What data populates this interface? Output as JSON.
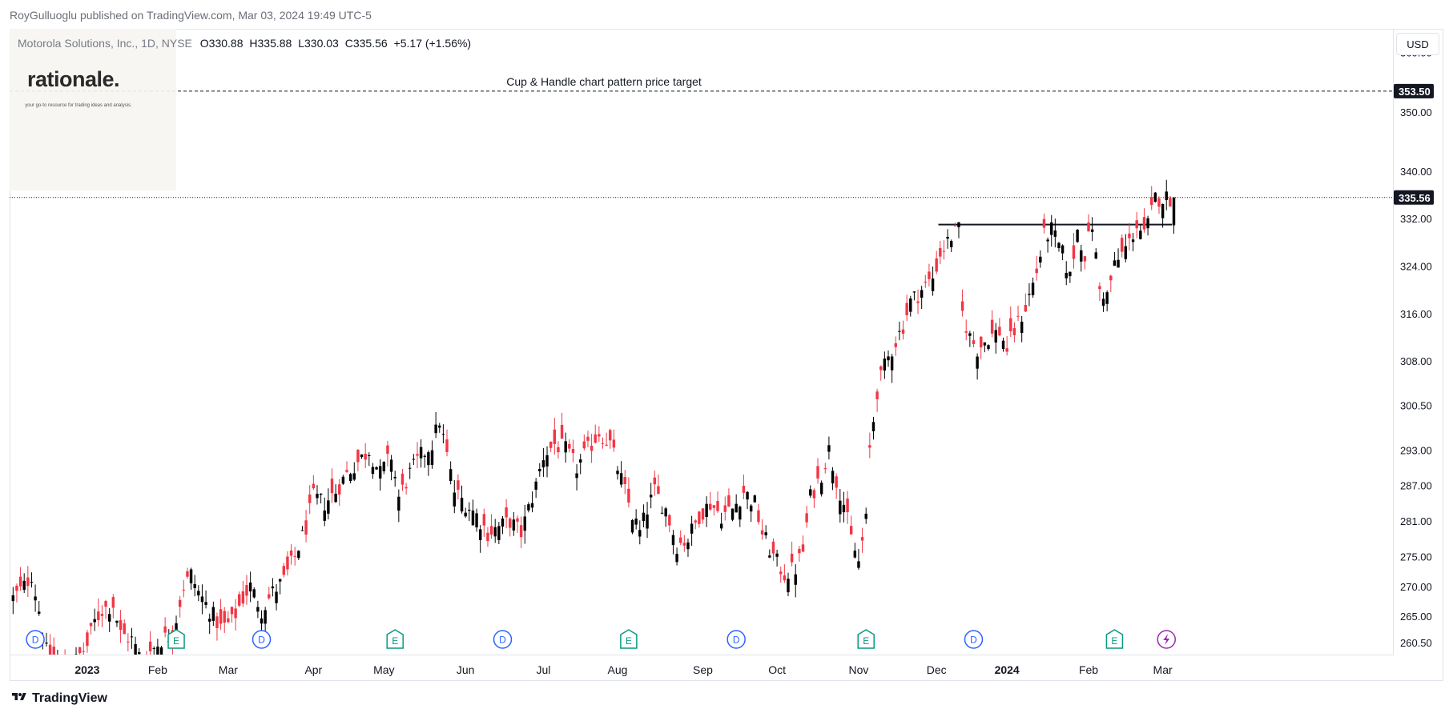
{
  "header": {
    "published": "RoyGulluoglu published on TradingView.com, Mar 03, 2024 19:49 UTC-5"
  },
  "legend": {
    "symbol": "Motorola Solutions, Inc., 1D, NYSE",
    "open_label": "O",
    "open": "330.88",
    "high_label": "H",
    "high": "335.88",
    "low_label": "L",
    "low": "330.03",
    "close_label": "C",
    "close": "335.56",
    "change": "+5.17 (+1.56%)"
  },
  "watermark": {
    "brand": "rationale.",
    "tagline": "your go-to resource for trading ideas and analysis."
  },
  "currency_button": "USD",
  "footer": {
    "brand": "TradingView"
  },
  "colors": {
    "up": "#000000",
    "down": "#f23645",
    "event_dividend": "#2962ff",
    "event_earnings": "#089981",
    "event_split": "#9c27b0",
    "last_price_label_bg": "#131722"
  },
  "chart_data": {
    "type": "candlestick",
    "ylim": [
      258.5,
      364
    ],
    "y_ticks": [
      "360.00",
      "350.00",
      "340.00",
      "332.00",
      "324.00",
      "316.00",
      "308.00",
      "300.50",
      "293.00",
      "287.00",
      "281.00",
      "275.00",
      "270.00",
      "265.00",
      "260.50"
    ],
    "x_ticks": [
      {
        "label": "2023",
        "bold": true,
        "index": 20
      },
      {
        "label": "Feb",
        "index": 39
      },
      {
        "label": "Mar",
        "index": 58
      },
      {
        "label": "Apr",
        "index": 81
      },
      {
        "label": "May",
        "index": 100
      },
      {
        "label": "Jun",
        "index": 122
      },
      {
        "label": "Jul",
        "index": 143
      },
      {
        "label": "Aug",
        "index": 163
      },
      {
        "label": "Sep",
        "index": 186
      },
      {
        "label": "Oct",
        "index": 206
      },
      {
        "label": "Nov",
        "index": 228
      },
      {
        "label": "Dec",
        "index": 249
      },
      {
        "label": "2024",
        "bold": true,
        "index": 268
      },
      {
        "label": "Feb",
        "index": 290
      },
      {
        "label": "Mar",
        "index": 310
      }
    ],
    "annotations": {
      "target_line": {
        "price": 353.5,
        "label": "353.50",
        "text": "Cup & Handle chart pattern price target"
      },
      "last_price": {
        "price": 335.56,
        "label": "335.56"
      },
      "neckline": {
        "price": 331,
        "from_index": 250,
        "to_index": 313
      }
    },
    "events": [
      {
        "type": "D",
        "index": 6
      },
      {
        "type": "E",
        "index": 44
      },
      {
        "type": "D",
        "index": 67
      },
      {
        "type": "E",
        "index": 103
      },
      {
        "type": "D",
        "index": 132
      },
      {
        "type": "E",
        "index": 166
      },
      {
        "type": "D",
        "index": 195
      },
      {
        "type": "E",
        "index": 230
      },
      {
        "type": "D",
        "index": 259
      },
      {
        "type": "E",
        "index": 297
      },
      {
        "type": "split",
        "index": 311
      }
    ],
    "key_points": [
      [
        0,
        268
      ],
      [
        3,
        270
      ],
      [
        5,
        272
      ],
      [
        7,
        266
      ],
      [
        9,
        259
      ],
      [
        15,
        256
      ],
      [
        20,
        260
      ],
      [
        22,
        264
      ],
      [
        24,
        266
      ],
      [
        27,
        267
      ],
      [
        29,
        262
      ],
      [
        32,
        261
      ],
      [
        35,
        257
      ],
      [
        37,
        259
      ],
      [
        40,
        261
      ],
      [
        43,
        262
      ],
      [
        46,
        270
      ],
      [
        48,
        272
      ],
      [
        50,
        269
      ],
      [
        53,
        266
      ],
      [
        56,
        263
      ],
      [
        59,
        264
      ],
      [
        62,
        268
      ],
      [
        64,
        270
      ],
      [
        67,
        266
      ],
      [
        70,
        269
      ],
      [
        73,
        271
      ],
      [
        76,
        275
      ],
      [
        79,
        280
      ],
      [
        81,
        285
      ],
      [
        84,
        284
      ],
      [
        87,
        286
      ],
      [
        90,
        289
      ],
      [
        93,
        291
      ],
      [
        96,
        293
      ],
      [
        99,
        289
      ],
      [
        102,
        292
      ],
      [
        104,
        285
      ],
      [
        107,
        289
      ],
      [
        110,
        292
      ],
      [
        113,
        294
      ],
      [
        115,
        298
      ],
      [
        117,
        292
      ],
      [
        119,
        286
      ],
      [
        122,
        284
      ],
      [
        125,
        282
      ],
      [
        128,
        279
      ],
      [
        131,
        280
      ],
      [
        134,
        281
      ],
      [
        137,
        279
      ],
      [
        139,
        283
      ],
      [
        141,
        287
      ],
      [
        143,
        292
      ],
      [
        146,
        294
      ],
      [
        149,
        293
      ],
      [
        152,
        290
      ],
      [
        155,
        293
      ],
      [
        158,
        296
      ],
      [
        161,
        294
      ],
      [
        164,
        288
      ],
      [
        167,
        282
      ],
      [
        169,
        279
      ],
      [
        171,
        283
      ],
      [
        173,
        286
      ],
      [
        176,
        283
      ],
      [
        179,
        277
      ],
      [
        182,
        278
      ],
      [
        185,
        282
      ],
      [
        188,
        284
      ],
      [
        191,
        282
      ],
      [
        194,
        283
      ],
      [
        197,
        286
      ],
      [
        200,
        284
      ],
      [
        202,
        279
      ],
      [
        205,
        275
      ],
      [
        208,
        272
      ],
      [
        211,
        273
      ],
      [
        213,
        276
      ],
      [
        215,
        285
      ],
      [
        218,
        289
      ],
      [
        220,
        293
      ],
      [
        222,
        288
      ],
      [
        224,
        284
      ],
      [
        226,
        278
      ],
      [
        228,
        274
      ],
      [
        230,
        281
      ],
      [
        231,
        293
      ],
      [
        233,
        303
      ],
      [
        235,
        307
      ],
      [
        237,
        310
      ],
      [
        240,
        314
      ],
      [
        242,
        318
      ],
      [
        245,
        320
      ],
      [
        248,
        322
      ],
      [
        250,
        326
      ],
      [
        253,
        329
      ],
      [
        255,
        330
      ],
      [
        256,
        316
      ],
      [
        258,
        312
      ],
      [
        260,
        310
      ],
      [
        263,
        312
      ],
      [
        266,
        313
      ],
      [
        268,
        310
      ],
      [
        270,
        313
      ],
      [
        273,
        317
      ],
      [
        276,
        323
      ],
      [
        278,
        329
      ],
      [
        280,
        330
      ],
      [
        283,
        326
      ],
      [
        285,
        322
      ],
      [
        287,
        330
      ],
      [
        289,
        326
      ],
      [
        291,
        331
      ],
      [
        293,
        320
      ],
      [
        295,
        319
      ],
      [
        297,
        324
      ],
      [
        299,
        326
      ],
      [
        301,
        328
      ],
      [
        303,
        331
      ],
      [
        305,
        329
      ],
      [
        306,
        331
      ],
      [
        307,
        333
      ],
      [
        308,
        335.5
      ]
    ]
  }
}
